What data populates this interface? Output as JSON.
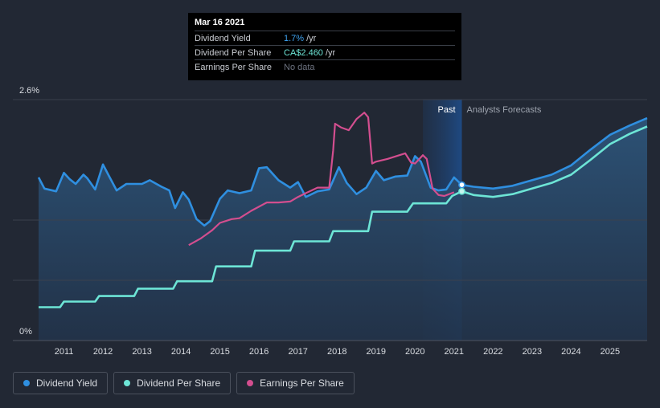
{
  "tooltip": {
    "date": "Mar 16 2021",
    "rows": [
      {
        "label": "Dividend Yield",
        "value": "1.7%",
        "unit": "/yr"
      },
      {
        "label": "Dividend Per Share",
        "value": "CA$2.460",
        "unit": "/yr"
      },
      {
        "label": "Earnings Per Share",
        "value": "No data"
      }
    ]
  },
  "legend": [
    {
      "label": "Dividend Yield",
      "color": "#2f8fe0"
    },
    {
      "label": "Dividend Per Share",
      "color": "#6de5d6"
    },
    {
      "label": "Earnings Per Share",
      "color": "#d34e8f"
    }
  ],
  "chart_data": {
    "type": "line",
    "y_top_label": "2.6%",
    "y_bottom_label": "0%",
    "ylim": [
      0,
      2.6
    ],
    "xlim": [
      2010.35,
      2025.95
    ],
    "past_label": "Past",
    "forecast_label": "Analysts Forecasts",
    "highlight_range": [
      2020.2,
      2021.2
    ],
    "x_ticks": [
      2011,
      2012,
      2013,
      2014,
      2015,
      2016,
      2017,
      2018,
      2019,
      2020,
      2021,
      2022,
      2023,
      2024,
      2025
    ],
    "series": [
      {
        "name": "Dividend Yield",
        "color": "#2f8fe0",
        "points": [
          [
            2010.35,
            1.76
          ],
          [
            2010.5,
            1.64
          ],
          [
            2010.8,
            1.61
          ],
          [
            2011.0,
            1.81
          ],
          [
            2011.15,
            1.74
          ],
          [
            2011.3,
            1.69
          ],
          [
            2011.5,
            1.79
          ],
          [
            2011.6,
            1.75
          ],
          [
            2011.8,
            1.63
          ],
          [
            2012.0,
            1.9
          ],
          [
            2012.15,
            1.78
          ],
          [
            2012.35,
            1.62
          ],
          [
            2012.6,
            1.69
          ],
          [
            2013.0,
            1.69
          ],
          [
            2013.2,
            1.73
          ],
          [
            2013.5,
            1.66
          ],
          [
            2013.7,
            1.62
          ],
          [
            2013.85,
            1.43
          ],
          [
            2014.05,
            1.6
          ],
          [
            2014.2,
            1.52
          ],
          [
            2014.4,
            1.31
          ],
          [
            2014.6,
            1.24
          ],
          [
            2014.75,
            1.29
          ],
          [
            2015.0,
            1.53
          ],
          [
            2015.2,
            1.62
          ],
          [
            2015.5,
            1.59
          ],
          [
            2015.8,
            1.62
          ],
          [
            2016.0,
            1.86
          ],
          [
            2016.2,
            1.87
          ],
          [
            2016.5,
            1.73
          ],
          [
            2016.8,
            1.65
          ],
          [
            2017.0,
            1.71
          ],
          [
            2017.2,
            1.55
          ],
          [
            2017.5,
            1.61
          ],
          [
            2017.8,
            1.63
          ],
          [
            2018.05,
            1.87
          ],
          [
            2018.25,
            1.7
          ],
          [
            2018.5,
            1.58
          ],
          [
            2018.75,
            1.65
          ],
          [
            2019.0,
            1.83
          ],
          [
            2019.2,
            1.73
          ],
          [
            2019.5,
            1.77
          ],
          [
            2019.8,
            1.78
          ],
          [
            2020.0,
            1.99
          ],
          [
            2020.15,
            1.93
          ],
          [
            2020.4,
            1.65
          ],
          [
            2020.6,
            1.62
          ],
          [
            2020.8,
            1.63
          ],
          [
            2021.0,
            1.76
          ],
          [
            2021.2,
            1.68
          ],
          [
            2021.5,
            1.66
          ],
          [
            2022.0,
            1.64
          ],
          [
            2022.5,
            1.67
          ],
          [
            2023.0,
            1.73
          ],
          [
            2023.5,
            1.79
          ],
          [
            2024.0,
            1.89
          ],
          [
            2024.5,
            2.06
          ],
          [
            2025.0,
            2.22
          ],
          [
            2025.5,
            2.32
          ],
          [
            2025.95,
            2.4
          ]
        ]
      },
      {
        "name": "Dividend Per Share",
        "color": "#6de5d6",
        "points": [
          [
            2010.35,
            0.36
          ],
          [
            2010.9,
            0.36
          ],
          [
            2011.0,
            0.42
          ],
          [
            2011.8,
            0.42
          ],
          [
            2011.9,
            0.48
          ],
          [
            2012.8,
            0.48
          ],
          [
            2012.9,
            0.56
          ],
          [
            2013.8,
            0.56
          ],
          [
            2013.9,
            0.64
          ],
          [
            2014.8,
            0.64
          ],
          [
            2014.9,
            0.8
          ],
          [
            2015.8,
            0.8
          ],
          [
            2015.9,
            0.97
          ],
          [
            2016.8,
            0.97
          ],
          [
            2016.9,
            1.07
          ],
          [
            2017.8,
            1.07
          ],
          [
            2017.9,
            1.18
          ],
          [
            2018.8,
            1.18
          ],
          [
            2018.9,
            1.39
          ],
          [
            2019.8,
            1.39
          ],
          [
            2019.95,
            1.48
          ],
          [
            2020.8,
            1.48
          ],
          [
            2020.95,
            1.56
          ],
          [
            2021.2,
            1.61
          ],
          [
            2021.5,
            1.57
          ],
          [
            2022.0,
            1.55
          ],
          [
            2022.5,
            1.58
          ],
          [
            2023.0,
            1.64
          ],
          [
            2023.5,
            1.7
          ],
          [
            2024.0,
            1.79
          ],
          [
            2024.5,
            1.95
          ],
          [
            2025.0,
            2.12
          ],
          [
            2025.5,
            2.23
          ],
          [
            2025.95,
            2.31
          ]
        ]
      },
      {
        "name": "Earnings Per Share",
        "color": "#d34e8f",
        "points": [
          [
            2014.2,
            1.03
          ],
          [
            2014.5,
            1.1
          ],
          [
            2014.8,
            1.19
          ],
          [
            2015.0,
            1.27
          ],
          [
            2015.3,
            1.31
          ],
          [
            2015.5,
            1.32
          ],
          [
            2015.8,
            1.4
          ],
          [
            2016.2,
            1.49
          ],
          [
            2016.5,
            1.49
          ],
          [
            2016.8,
            1.5
          ],
          [
            2017.0,
            1.55
          ],
          [
            2017.2,
            1.59
          ],
          [
            2017.5,
            1.65
          ],
          [
            2017.8,
            1.65
          ],
          [
            2017.9,
            2.05
          ],
          [
            2017.95,
            2.34
          ],
          [
            2018.1,
            2.3
          ],
          [
            2018.3,
            2.27
          ],
          [
            2018.5,
            2.39
          ],
          [
            2018.7,
            2.46
          ],
          [
            2018.8,
            2.41
          ],
          [
            2018.9,
            1.91
          ],
          [
            2019.0,
            1.93
          ],
          [
            2019.3,
            1.96
          ],
          [
            2019.6,
            2.0
          ],
          [
            2019.75,
            2.02
          ],
          [
            2019.9,
            1.92
          ],
          [
            2020.0,
            1.91
          ],
          [
            2020.2,
            2.0
          ],
          [
            2020.3,
            1.96
          ],
          [
            2020.45,
            1.64
          ],
          [
            2020.6,
            1.57
          ],
          [
            2020.75,
            1.56
          ],
          [
            2021.0,
            1.6
          ]
        ]
      }
    ]
  }
}
